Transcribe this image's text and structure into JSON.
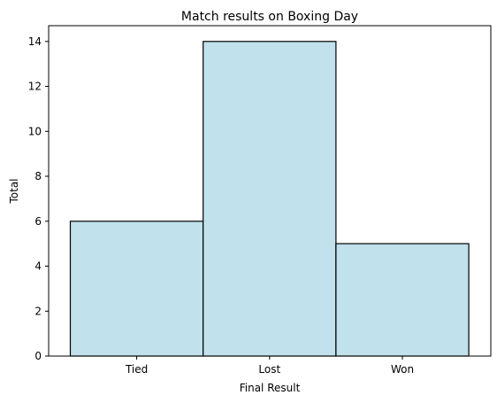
{
  "chart_data": {
    "type": "bar",
    "title": "Match results on Boxing Day",
    "xlabel": "Final Result",
    "ylabel": "Total",
    "categories": [
      "Tied",
      "Lost",
      "Won"
    ],
    "values": [
      6,
      14,
      5
    ],
    "ylim": [
      0,
      14.7
    ],
    "yticks": [
      0,
      2,
      4,
      6,
      8,
      10,
      12,
      14
    ],
    "grid": false,
    "legend": "none",
    "bar_color": "#c1e1ec",
    "edge_color": "#000000"
  }
}
